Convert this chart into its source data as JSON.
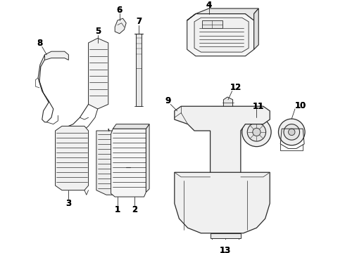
{
  "background_color": "#ffffff",
  "line_color": "#2a2a2a",
  "label_color": "#000000",
  "figsize": [
    4.9,
    3.6
  ],
  "dpi": 100,
  "label_fs": 8.5
}
